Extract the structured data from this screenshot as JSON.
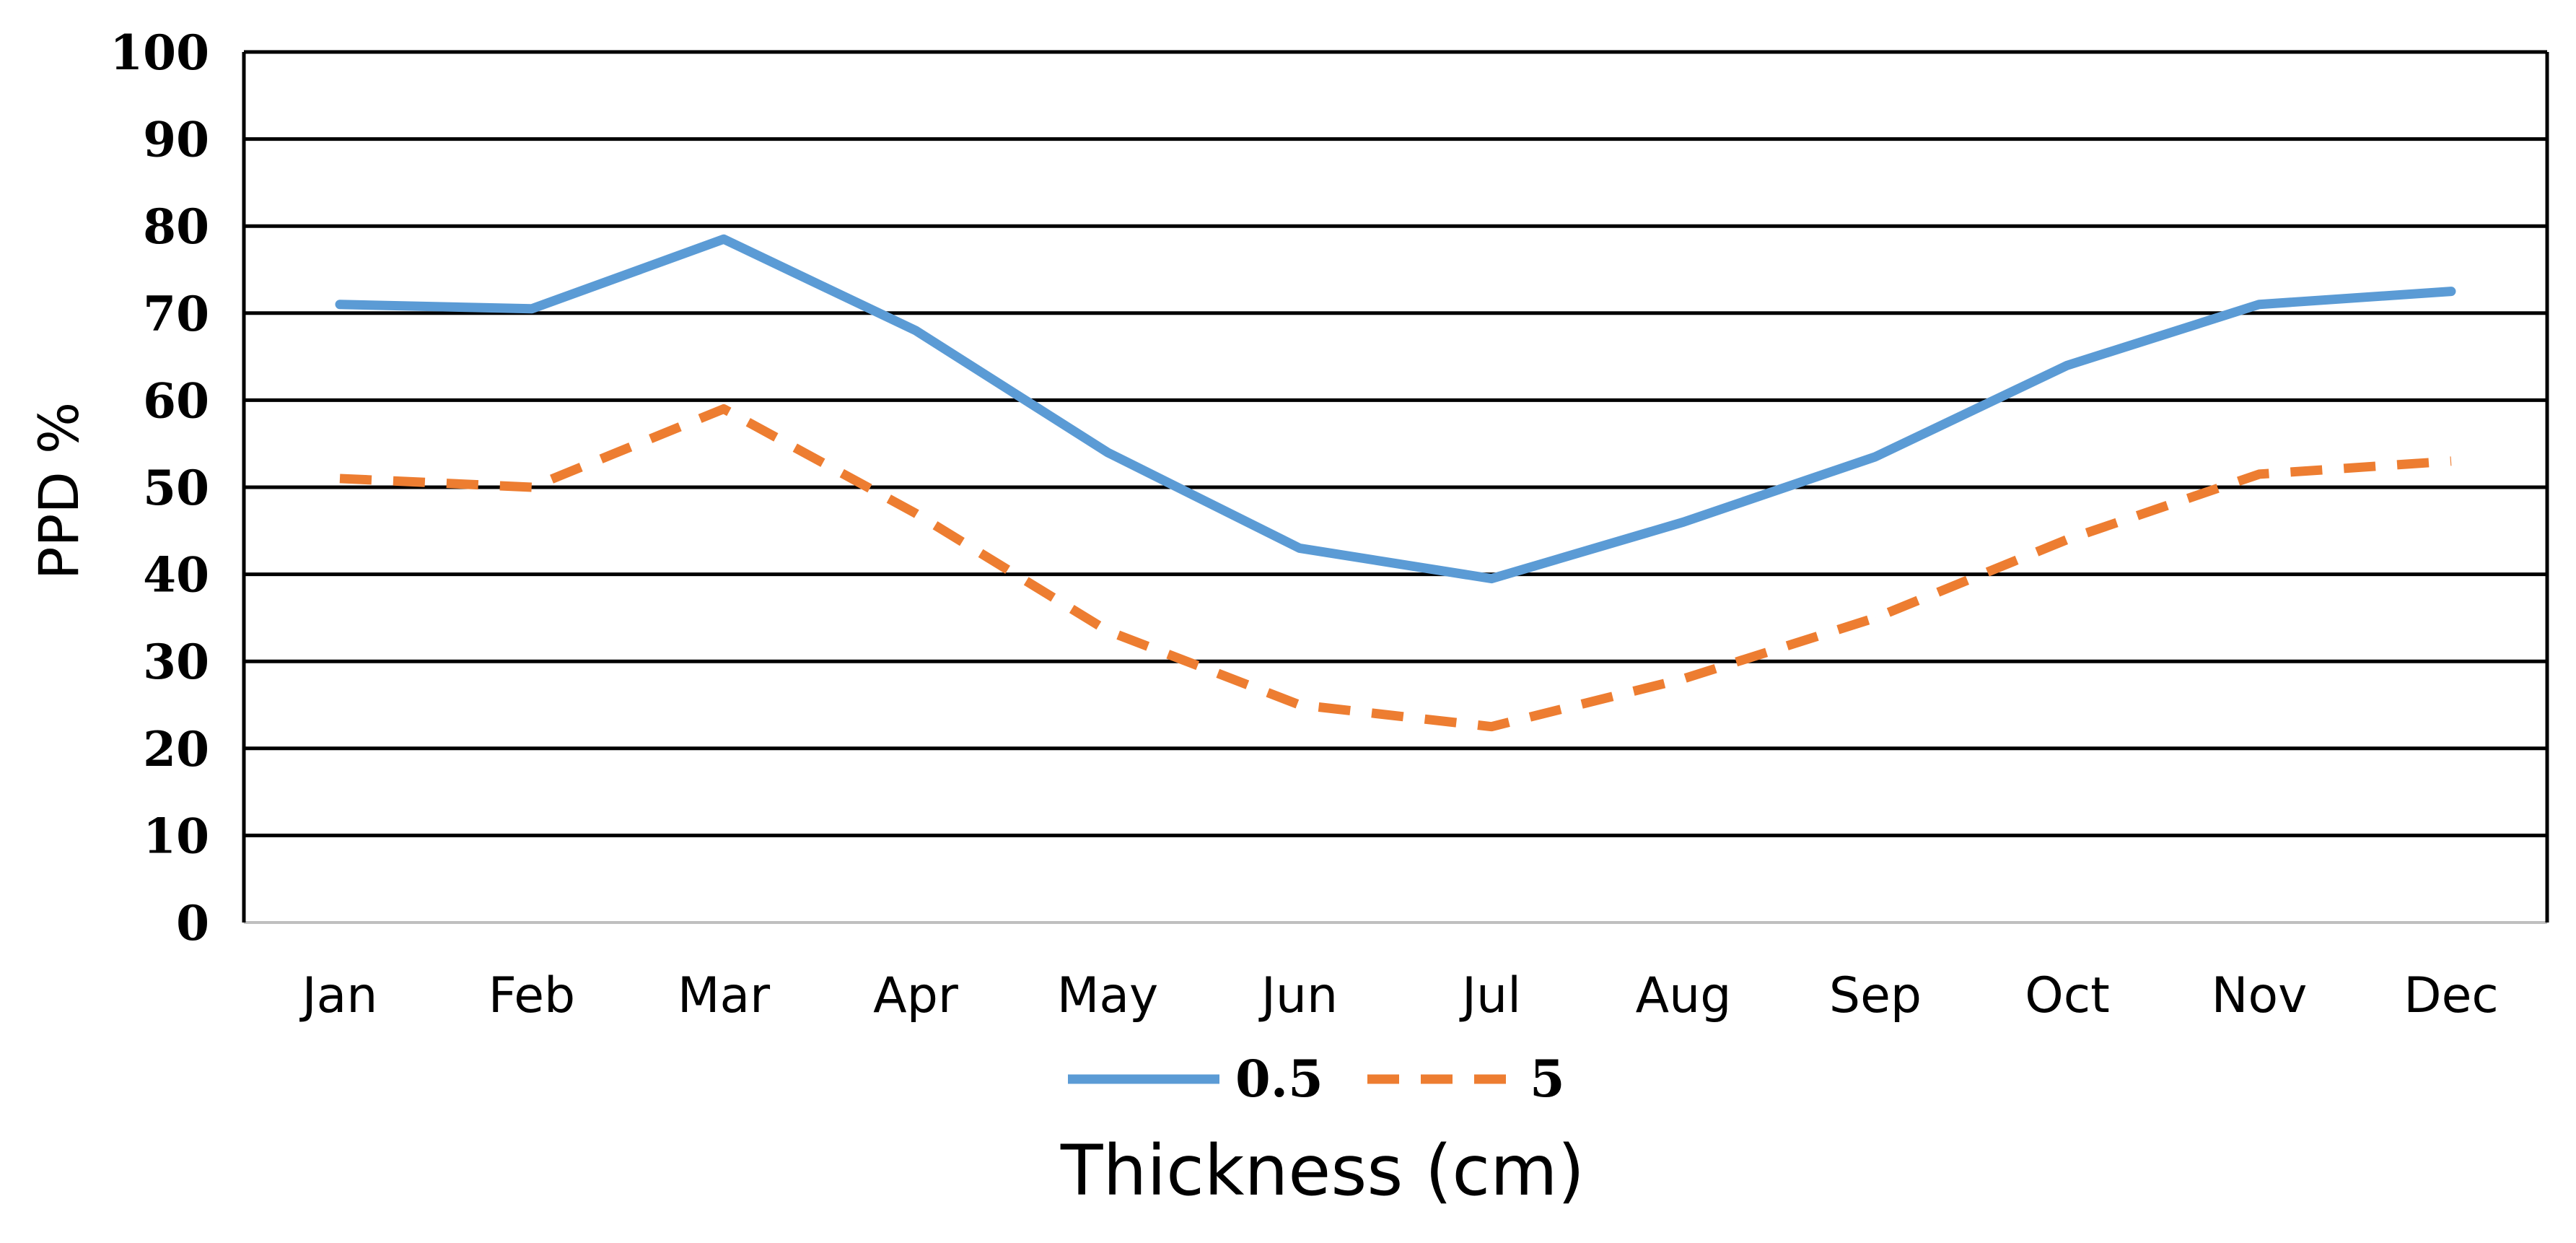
{
  "chart_data": {
    "type": "line",
    "categories": [
      "Jan",
      "Feb",
      "Mar",
      "Apr",
      "May",
      "Jun",
      "Jul",
      "Aug",
      "Sep",
      "Oct",
      "Nov",
      "Dec"
    ],
    "series": [
      {
        "name": "0.5",
        "values": [
          71,
          70.5,
          78.5,
          68,
          54,
          43,
          39.5,
          46,
          53.5,
          64,
          71,
          72.5
        ],
        "color": "#5B9BD5",
        "style": "solid"
      },
      {
        "name": "5",
        "values": [
          51,
          50,
          59,
          47,
          33.5,
          25,
          22.5,
          28,
          35,
          44,
          51.5,
          53
        ],
        "color": "#ED7D31",
        "style": "dashed"
      }
    ],
    "ylim": [
      0,
      100
    ],
    "yticks": [
      0,
      10,
      20,
      30,
      40,
      50,
      60,
      70,
      80,
      90,
      100
    ],
    "ylabel": "PPD %",
    "xlabel": "Thickness (cm)",
    "grid": true,
    "legend": "bottom"
  }
}
